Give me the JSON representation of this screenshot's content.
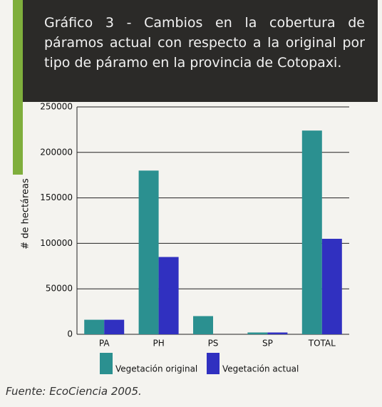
{
  "chart_data": {
    "type": "bar",
    "title": "Gráfico 3 - Cambios en la cobertura de páramos actual con respecto a la original por tipo de páramo en la provincia de Cotopaxi.",
    "y_label": "# de hectáreas",
    "categories": [
      "PA",
      "PH",
      "PS",
      "SP",
      "TOTAL"
    ],
    "series": [
      {
        "name": "Vegetación original",
        "color": "#2b9090",
        "values": [
          16000,
          180000,
          20000,
          2000,
          224000
        ]
      },
      {
        "name": "Vegetación actual",
        "color": "#3030c0",
        "values": [
          16000,
          85000,
          0,
          2000,
          105000
        ]
      }
    ],
    "ylim": [
      0,
      250000
    ],
    "yticks": [
      0,
      50000,
      100000,
      150000,
      200000,
      250000
    ],
    "grid": true,
    "source": "Fuente: EcoCiencia 2005."
  }
}
